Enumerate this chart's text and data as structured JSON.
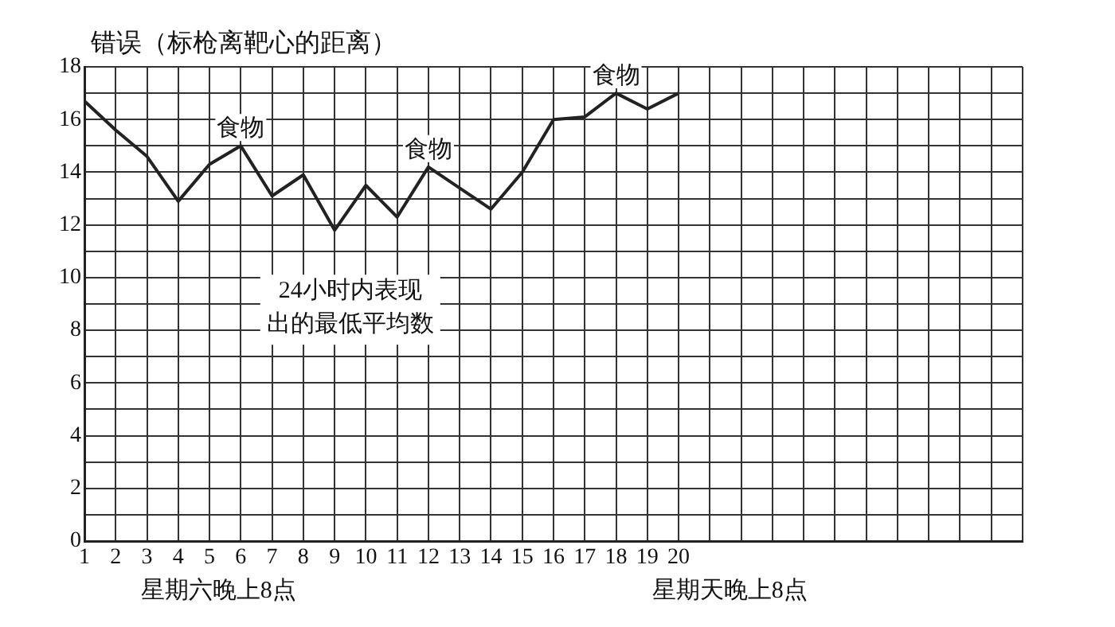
{
  "chart_data": {
    "type": "line",
    "ylabel": "错误（标枪离靶心的距离）",
    "x": [
      1,
      2,
      3,
      4,
      5,
      6,
      7,
      8,
      9,
      10,
      11,
      12,
      13,
      14,
      15,
      16,
      17,
      18,
      19,
      20
    ],
    "series": [
      {
        "color": "#222222",
        "values": [
          16.7,
          15.6,
          14.6,
          12.9,
          14.3,
          15.0,
          13.1,
          13.9,
          11.8,
          13.5,
          12.3,
          14.2,
          13.4,
          12.6,
          14.0,
          16.0,
          16.1,
          17.0,
          16.4,
          17.0
        ]
      }
    ],
    "xlim": [
      1,
      31
    ],
    "xticks": [
      1,
      2,
      3,
      4,
      5,
      6,
      7,
      8,
      9,
      10,
      11,
      12,
      13,
      14,
      15,
      16,
      17,
      18,
      19,
      20,
      {
        "value": 21,
        "label": null
      },
      {
        "value": 22,
        "label": null
      },
      {
        "value": 23,
        "label": null
      },
      {
        "value": 24,
        "label": null
      },
      {
        "value": 25,
        "label": null
      },
      {
        "value": 26,
        "label": null
      },
      {
        "value": 27,
        "label": null
      },
      {
        "value": 28,
        "label": null
      },
      {
        "value": 29,
        "label": null
      },
      {
        "value": 30,
        "label": null
      },
      {
        "value": 31,
        "label": null
      }
    ],
    "ylim": [
      0,
      18
    ],
    "yticks": [
      0,
      {
        "value": 1,
        "label": null
      },
      2,
      {
        "value": 3,
        "label": null
      },
      4,
      {
        "value": 5,
        "label": null
      },
      6,
      {
        "value": 7,
        "label": null
      },
      8,
      {
        "value": 9,
        "label": null
      },
      10,
      {
        "value": 11,
        "label": null
      },
      12,
      {
        "value": 13,
        "label": null
      },
      14,
      {
        "value": 15,
        "label": null
      },
      16,
      {
        "value": 17,
        "label": null
      },
      18
    ],
    "grid": true,
    "marker": "none",
    "line_style": "solid",
    "annotations": [
      {
        "text": "食物",
        "x": 6,
        "y": 15.0
      },
      {
        "text": "食物",
        "x": 12,
        "y": 14.2
      },
      {
        "text": "食物",
        "x": 18,
        "y": 17.0
      },
      {
        "text": "24小时内表现出的最低平均数",
        "x": 9,
        "y": 11.8
      },
      "星期六晚上8点",
      "星期天晚上8点"
    ]
  }
}
